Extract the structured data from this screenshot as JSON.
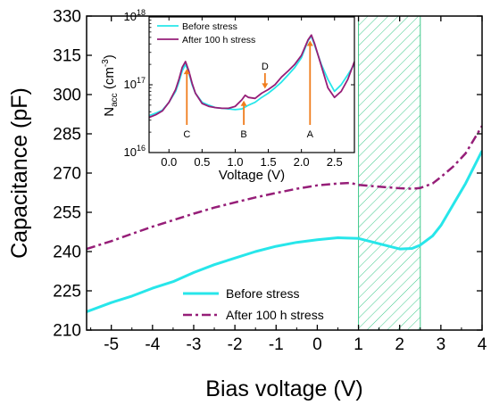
{
  "colors": {
    "before": "#27e6ea",
    "after": "#961e78",
    "hatch": "#3ec98a",
    "arrow": "#f07d1e"
  },
  "chart_data": [
    {
      "type": "line",
      "xlabel": "Bias voltage (V)",
      "ylabel": "Capacitance (pF)",
      "xlim": [
        -5.6,
        4
      ],
      "ylim": [
        210,
        330
      ],
      "xticks": [
        -5,
        -4,
        -3,
        -2,
        -1,
        0,
        1,
        2,
        3,
        4
      ],
      "yticks": [
        210,
        225,
        240,
        255,
        270,
        285,
        300,
        315,
        330
      ],
      "shaded_region": {
        "x": [
          1,
          2.5
        ],
        "style": "hatched"
      },
      "legend": {
        "position": "bottom-center"
      },
      "series": [
        {
          "name": "Before stress",
          "style": "solid",
          "x": [
            -5.6,
            -5,
            -4.5,
            -4,
            -3.5,
            -3,
            -2.5,
            -2,
            -1.5,
            -1,
            -0.5,
            0,
            0.5,
            1,
            1.5,
            2,
            2.3,
            2.5,
            2.8,
            3,
            3.3,
            3.6,
            4
          ],
          "y": [
            217,
            220.5,
            223,
            226,
            228.5,
            232,
            235,
            237.5,
            240,
            242,
            243.5,
            244.5,
            245.3,
            245,
            243,
            241,
            241.2,
            242.5,
            246,
            250,
            258,
            266,
            278.5
          ]
        },
        {
          "name": "After 100 h stress",
          "style": "dash-dot",
          "x": [
            -5.6,
            -5,
            -4.5,
            -4,
            -3.5,
            -3,
            -2.5,
            -2,
            -1.5,
            -1,
            -0.5,
            0,
            0.5,
            0.8,
            1,
            1.5,
            2,
            2.3,
            2.5,
            2.8,
            3,
            3.3,
            3.6,
            4
          ],
          "y": [
            241,
            244,
            246.8,
            249.5,
            252,
            254.5,
            256.8,
            258.8,
            260.7,
            262.4,
            264,
            265.3,
            266,
            266.2,
            265.5,
            264.8,
            264.2,
            264,
            264.3,
            266,
            268.5,
            272.5,
            277.5,
            288
          ]
        }
      ]
    },
    {
      "type": "line",
      "xlabel": "Voltage (V)",
      "ylabel": "N",
      "ylabel_sub": "acc",
      "ylabel_unit": " (cm",
      "ylabel_unit_sup": "-3",
      "ylabel_unit_end": ")",
      "yscale": "log",
      "xlim": [
        -0.3,
        2.8
      ],
      "ylim": [
        1e+16,
        1e+18
      ],
      "xticks": [
        0.0,
        0.5,
        1.0,
        1.5,
        2.0,
        2.5
      ],
      "xtick_labels": [
        "0.0",
        "0.5",
        "1.0",
        "1.5",
        "2.0",
        "2.5"
      ],
      "yticks": [
        1e+16,
        1e+17,
        1e+18
      ],
      "ytick_base": "10",
      "ytick_exponents": [
        "16",
        "17",
        "18"
      ],
      "legend": {
        "position": "top-left"
      },
      "series": [
        {
          "name": "Before stress",
          "x": [
            -0.3,
            -0.2,
            -0.1,
            0.0,
            0.1,
            0.15,
            0.2,
            0.25,
            0.3,
            0.35,
            0.4,
            0.5,
            0.6,
            0.7,
            0.8,
            0.9,
            1.0,
            1.1,
            1.2,
            1.3,
            1.4,
            1.5,
            1.6,
            1.7,
            1.8,
            1.9,
            2.0,
            2.1,
            2.15,
            2.2,
            2.3,
            2.4,
            2.5,
            2.6,
            2.7,
            2.8
          ],
          "y": [
            3.5e+16,
            3.8e+16,
            4.2e+16,
            5.5e+16,
            8e+16,
            1.1e+17,
            1.6e+17,
            2e+17,
            1.5e+17,
            1e+17,
            7.5e+16,
            5.5e+16,
            5e+16,
            4.6e+16,
            4.5e+16,
            4.4e+16,
            4.3e+16,
            4.4e+16,
            5e+16,
            5.5e+16,
            6.5e+16,
            7.5e+16,
            9e+16,
            1.1e+17,
            1.4e+17,
            1.8e+17,
            2.5e+17,
            4.5e+17,
            5.2e+17,
            3.8e+17,
            2e+17,
            1.2e+17,
            8e+16,
            1e+17,
            1.4e+17,
            2e+17
          ]
        },
        {
          "name": "After 100 h stress",
          "x": [
            -0.3,
            -0.2,
            -0.1,
            0.0,
            0.1,
            0.15,
            0.2,
            0.25,
            0.3,
            0.35,
            0.4,
            0.5,
            0.6,
            0.7,
            0.8,
            0.9,
            1.0,
            1.1,
            1.15,
            1.2,
            1.3,
            1.4,
            1.5,
            1.6,
            1.7,
            1.8,
            1.9,
            2.0,
            2.1,
            2.15,
            2.2,
            2.3,
            2.4,
            2.5,
            2.6,
            2.7,
            2.8
          ],
          "y": [
            3.3e+16,
            3.6e+16,
            4.1e+16,
            5.5e+16,
            8.5e+16,
            1.2e+17,
            1.8e+17,
            2.2e+17,
            1.6e+17,
            1.05e+17,
            7.5e+16,
            5.3e+16,
            4.8e+16,
            4.6e+16,
            4.5e+16,
            4.5e+16,
            4.8e+16,
            6e+16,
            7e+16,
            6.5e+16,
            6.3e+16,
            7.5e+16,
            8.5e+16,
            1e+17,
            1.3e+17,
            1.6e+17,
            2e+17,
            2.7e+17,
            4.6e+17,
            5.4e+17,
            4e+17,
            1.9e+17,
            9e+16,
            6.5e+16,
            8e+16,
            1.2e+17,
            2.2e+17
          ]
        }
      ],
      "annotations": [
        {
          "label": "C",
          "x": 0.27
        },
        {
          "label": "B",
          "x": 1.13
        },
        {
          "label": "D",
          "x": 1.45
        },
        {
          "label": "A",
          "x": 2.13
        }
      ]
    }
  ]
}
